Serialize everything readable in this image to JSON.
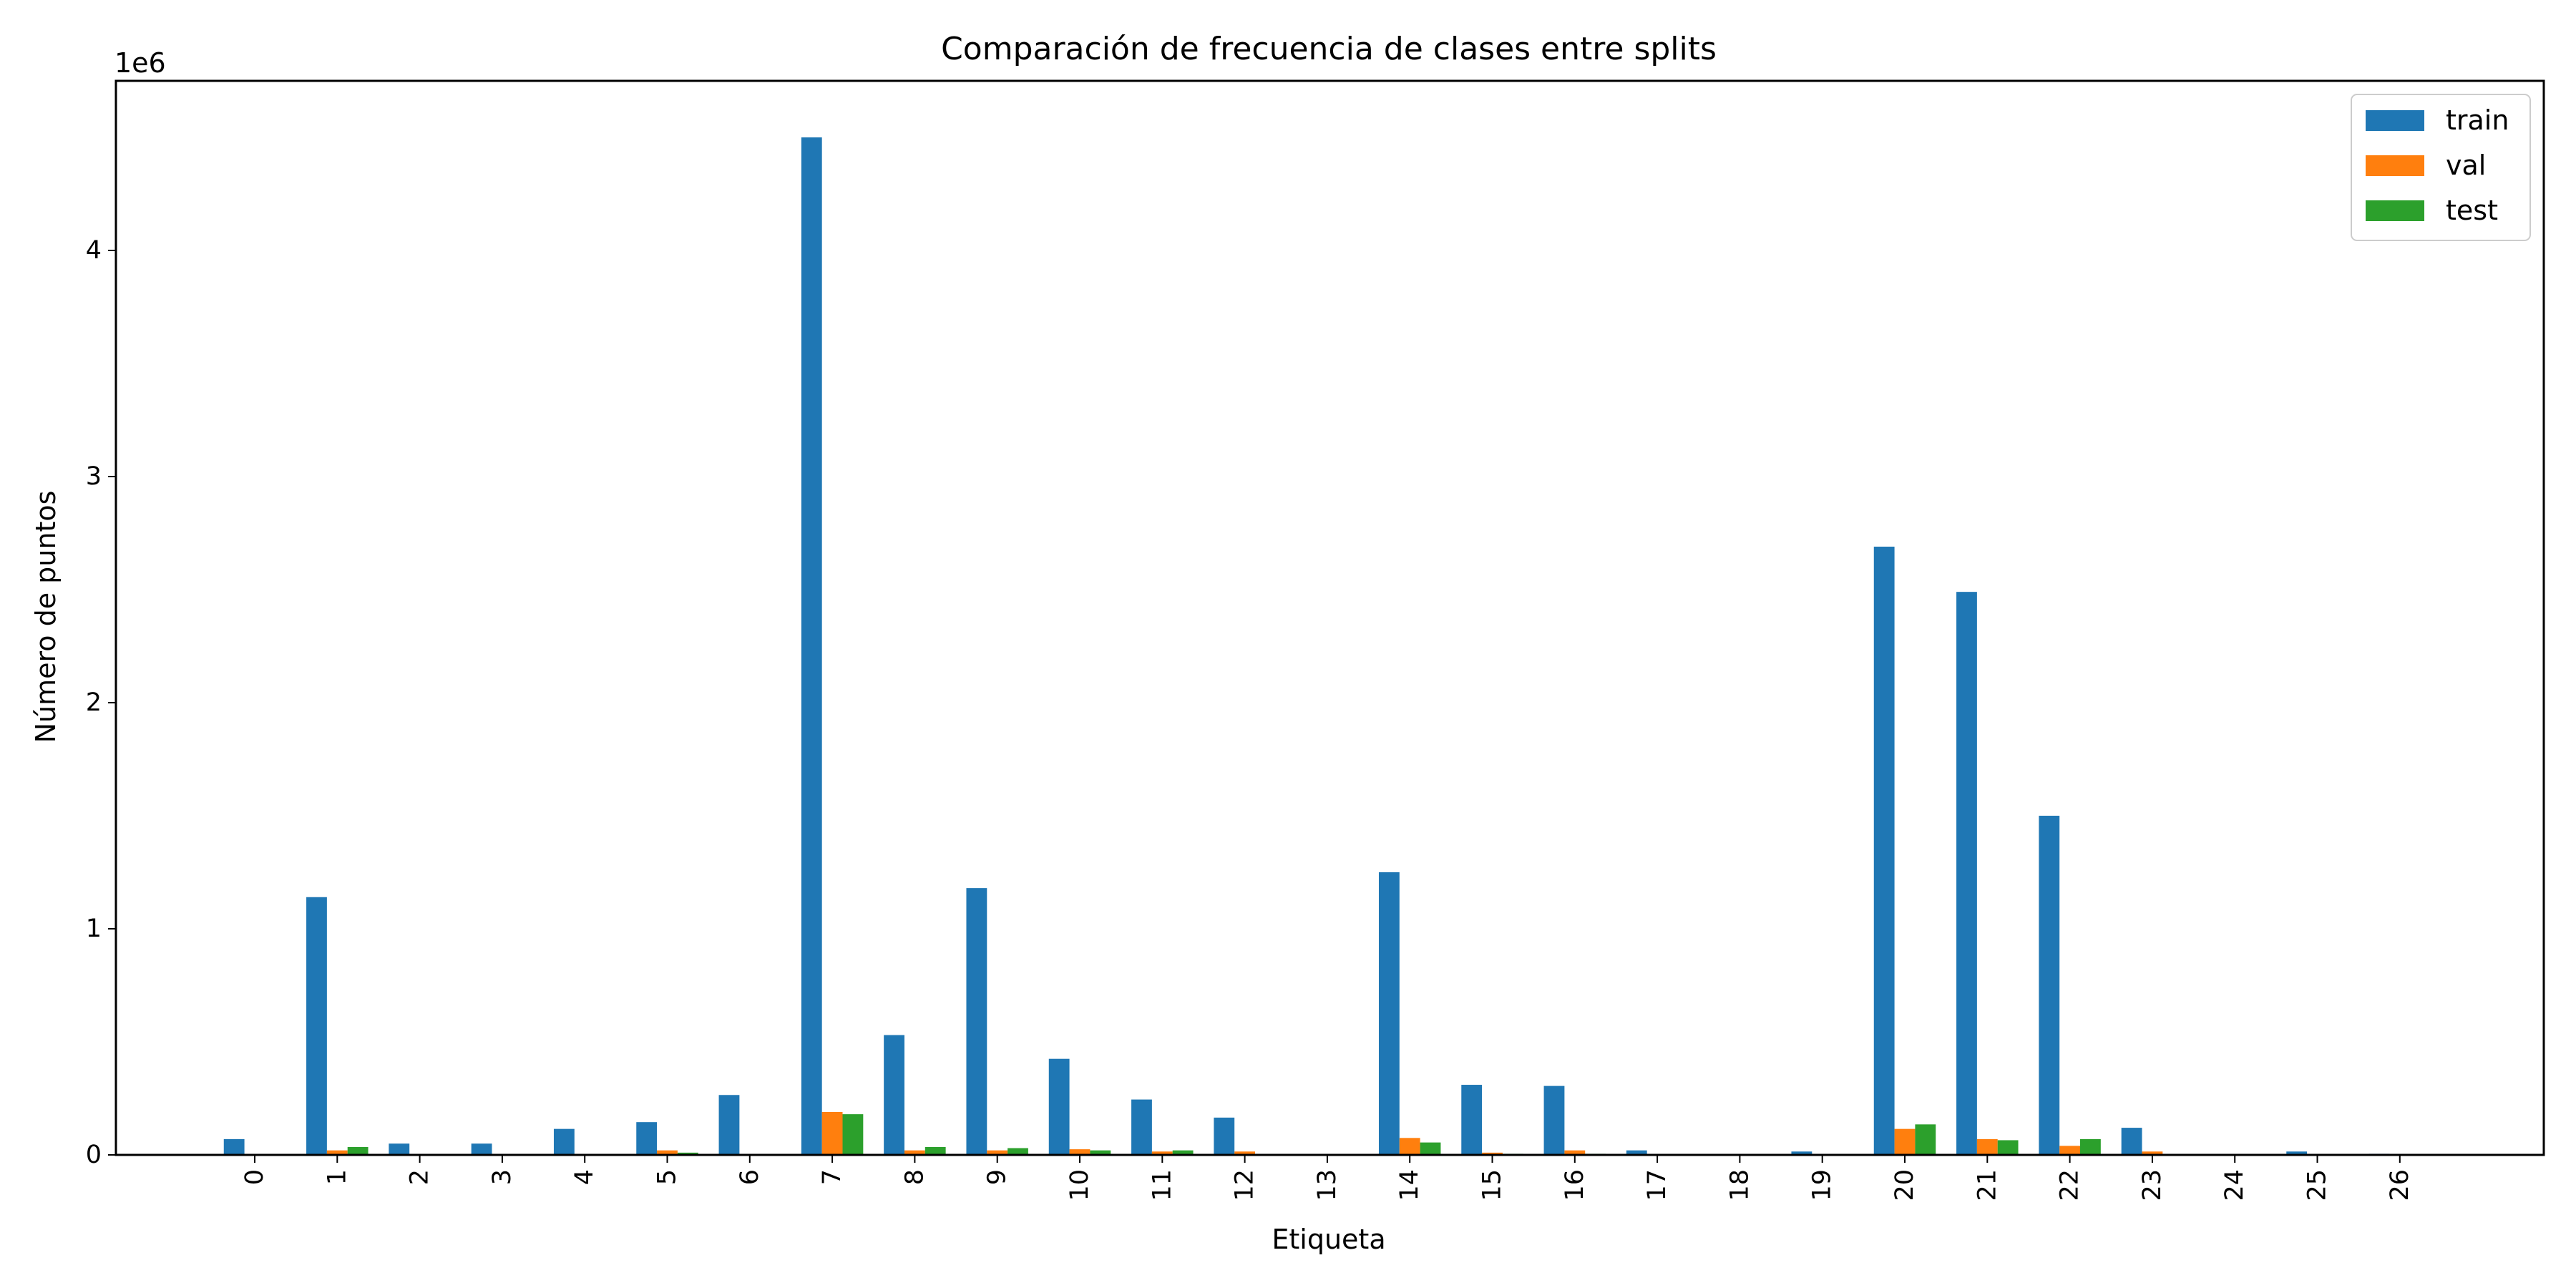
{
  "chart_data": {
    "type": "bar",
    "title": "Comparación de frecuencia de clases entre splits",
    "xlabel": "Etiqueta",
    "ylabel": "Número de puntos",
    "offset_text": "1e6",
    "ylim": [
      0,
      4.75
    ],
    "yticks": [
      0,
      1,
      2,
      3,
      4
    ],
    "grid": false,
    "legend_position": "top-right",
    "categories": [
      "0",
      "1",
      "2",
      "3",
      "4",
      "5",
      "6",
      "7",
      "8",
      "9",
      "10",
      "11",
      "12",
      "13",
      "14",
      "15",
      "16",
      "17",
      "18",
      "19",
      "20",
      "21",
      "22",
      "23",
      "24",
      "25",
      "26"
    ],
    "series": [
      {
        "name": "train",
        "color": "#1f77b4",
        "values": [
          0.07,
          1.14,
          0.05,
          0.05,
          0.115,
          0.145,
          0.265,
          4.5,
          0.53,
          1.18,
          0.425,
          0.245,
          0.165,
          0.0,
          1.25,
          0.31,
          0.305,
          0.02,
          0.0,
          0.015,
          2.69,
          2.49,
          1.5,
          0.12,
          0.0,
          0.015,
          0.005
        ]
      },
      {
        "name": "val",
        "color": "#ff7f0e",
        "values": [
          0.0,
          0.02,
          0.0,
          0.0,
          0.0,
          0.02,
          0.0,
          0.19,
          0.02,
          0.02,
          0.025,
          0.015,
          0.015,
          0.0,
          0.075,
          0.01,
          0.02,
          0.0,
          0.0,
          0.0,
          0.115,
          0.07,
          0.04,
          0.015,
          0.0,
          0.0,
          0.0
        ]
      },
      {
        "name": "test",
        "color": "#2ca02c",
        "values": [
          0.0,
          0.035,
          0.0,
          0.0,
          0.0,
          0.01,
          0.0,
          0.18,
          0.035,
          0.03,
          0.02,
          0.02,
          0.0,
          0.0,
          0.055,
          0.005,
          0.005,
          0.0,
          0.0,
          0.0,
          0.135,
          0.065,
          0.07,
          0.0,
          0.0,
          0.0,
          0.0
        ]
      }
    ]
  }
}
